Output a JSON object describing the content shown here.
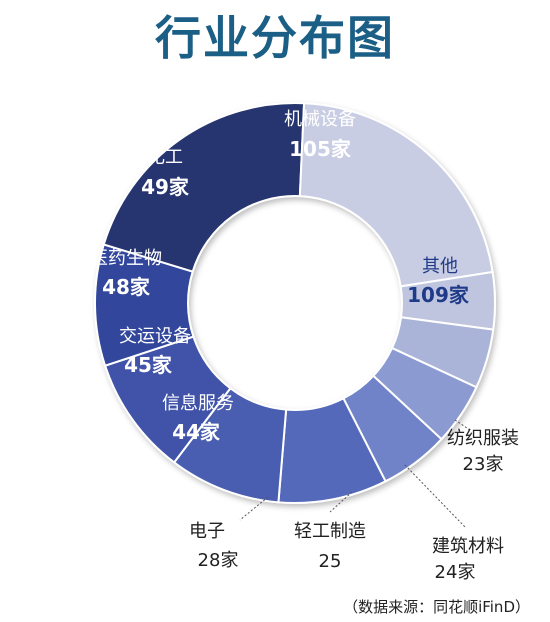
{
  "chart_data": {
    "type": "pie",
    "title": "行业分布图",
    "categories": [
      "机械设备",
      "其他",
      "纺织服装",
      "建筑材料",
      "轻工制造",
      "电子",
      "信息服务",
      "交运设备",
      "医药生物",
      "化工"
    ],
    "values": [
      105,
      109,
      23,
      24,
      25,
      28,
      44,
      45,
      48,
      49
    ],
    "value_labels": [
      "105家",
      "109家",
      "23家",
      "24家",
      "25",
      "28家",
      "44家",
      "45家",
      "48家",
      "49家"
    ],
    "colors": [
      "#26366f",
      "#c9cde3",
      "#bfc5de",
      "#aab4d9",
      "#8b9ad1",
      "#6f82c8",
      "#5569ba",
      "#4a5db1",
      "#3f53a8",
      "#33479c"
    ],
    "source": "（数据来源：同花顺iFinD）"
  }
}
